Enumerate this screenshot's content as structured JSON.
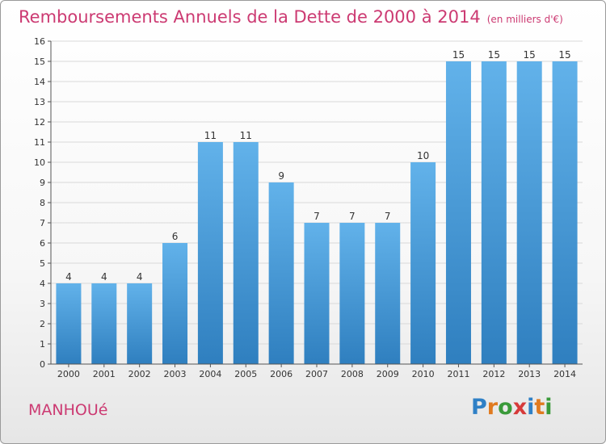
{
  "title": "Remboursements Annuels de la Dette de 2000 à 2014",
  "unit": "(en milliers d'€)",
  "city": "MANHOUé",
  "logo": {
    "text": "Proxiti",
    "letter_colors": [
      "#2f80c6",
      "#e07a1f",
      "#3a9a3a",
      "#d63a3a",
      "#2f80c6",
      "#e07a1f",
      "#3a9a3a"
    ]
  },
  "colors": {
    "accent": "#cc3a72",
    "bar_light": "#62b2ea",
    "bar_dark": "#2f7fbf"
  },
  "chart_data": {
    "type": "bar",
    "title": "Remboursements Annuels de la Dette de 2000 à 2014",
    "categories": [
      "2000",
      "2001",
      "2002",
      "2003",
      "2004",
      "2005",
      "2006",
      "2007",
      "2008",
      "2009",
      "2010",
      "2011",
      "2012",
      "2013",
      "2014"
    ],
    "values": [
      4,
      4,
      4,
      6,
      11,
      11,
      9,
      7,
      7,
      7,
      10,
      15,
      15,
      15,
      15
    ],
    "data_labels": [
      "4",
      "4",
      "4",
      "6",
      "11",
      "11",
      "9",
      "7",
      "7",
      "7",
      "10",
      "15",
      "15",
      "15",
      "15"
    ],
    "ylim": [
      0,
      16
    ],
    "yticks": [
      "0",
      "1",
      "2",
      "3",
      "4",
      "5",
      "6",
      "7",
      "8",
      "9",
      "10",
      "11",
      "12",
      "13",
      "14",
      "15",
      "16"
    ],
    "grid": true
  }
}
